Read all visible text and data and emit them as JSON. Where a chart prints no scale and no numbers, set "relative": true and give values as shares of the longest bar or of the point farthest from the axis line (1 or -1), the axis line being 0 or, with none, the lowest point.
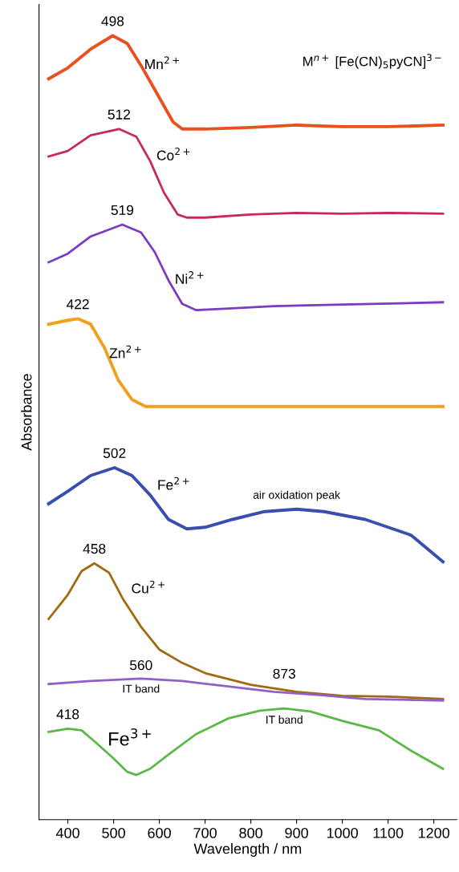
{
  "chart_data": {
    "type": "line",
    "relative": true,
    "xlabel": "Wavelength / nm",
    "ylabel": "Absorbance",
    "xlim": [
      337,
      1250
    ],
    "xticks": [
      400,
      500,
      600,
      700,
      800,
      900,
      1000,
      1100,
      1200
    ],
    "grid": false,
    "legend": false,
    "marker": "none",
    "line_style": "solid",
    "series": [
      {
        "color": "#e8501e",
        "x": [
          358,
          400,
          450,
          498,
          530,
          560,
          600,
          630,
          650,
          700,
          800,
          900,
          1000,
          1100,
          1220
        ],
        "values": [
          0.945,
          0.959,
          0.983,
          1.0,
          0.99,
          0.962,
          0.921,
          0.89,
          0.881,
          0.881,
          0.883,
          0.886,
          0.884,
          0.884,
          0.886
        ]
      },
      {
        "color": "#c8285a",
        "x": [
          358,
          400,
          450,
          512,
          550,
          580,
          610,
          640,
          660,
          700,
          800,
          900,
          1000,
          1100,
          1220
        ],
        "values": [
          0.846,
          0.853,
          0.873,
          0.881,
          0.871,
          0.84,
          0.8,
          0.772,
          0.768,
          0.768,
          0.772,
          0.774,
          0.773,
          0.774,
          0.773
        ]
      },
      {
        "color": "#7a3cc0",
        "x": [
          358,
          400,
          450,
          519,
          560,
          590,
          620,
          650,
          680,
          750,
          850,
          1000,
          1220
        ],
        "values": [
          0.711,
          0.722,
          0.744,
          0.759,
          0.749,
          0.724,
          0.688,
          0.658,
          0.65,
          0.652,
          0.655,
          0.657,
          0.66
        ]
      },
      {
        "color": "#f0a020",
        "x": [
          358,
          400,
          422,
          450,
          480,
          510,
          540,
          570,
          600,
          800,
          1000,
          1220
        ],
        "values": [
          0.632,
          0.637,
          0.639,
          0.632,
          0.602,
          0.561,
          0.536,
          0.527,
          0.527,
          0.527,
          0.527,
          0.527
        ]
      },
      {
        "color": "#3a4eb0",
        "x": [
          358,
          400,
          450,
          502,
          540,
          580,
          620,
          660,
          700,
          760,
          830,
          900,
          960,
          1050,
          1150,
          1220
        ],
        "values": [
          0.403,
          0.419,
          0.439,
          0.449,
          0.439,
          0.414,
          0.383,
          0.371,
          0.373,
          0.383,
          0.393,
          0.396,
          0.393,
          0.383,
          0.363,
          0.329
        ]
      },
      {
        "color": "#a06a10",
        "x": [
          358,
          400,
          430,
          458,
          490,
          520,
          560,
          600,
          650,
          700,
          800,
          900,
          1000,
          1100,
          1220
        ],
        "values": [
          0.256,
          0.287,
          0.317,
          0.327,
          0.315,
          0.282,
          0.246,
          0.217,
          0.2,
          0.187,
          0.172,
          0.163,
          0.158,
          0.157,
          0.154
        ]
      },
      {
        "color": "#9060c8",
        "x": [
          358,
          450,
          560,
          650,
          750,
          850,
          950,
          1050,
          1220
        ],
        "values": [
          0.173,
          0.177,
          0.18,
          0.177,
          0.17,
          0.163,
          0.159,
          0.154,
          0.152
        ]
      },
      {
        "color": "#5ab848",
        "x": [
          358,
          400,
          430,
          460,
          500,
          530,
          550,
          580,
          620,
          680,
          750,
          820,
          873,
          930,
          1000,
          1080,
          1150,
          1220
        ],
        "values": [
          0.112,
          0.116,
          0.114,
          0.099,
          0.078,
          0.061,
          0.057,
          0.065,
          0.083,
          0.109,
          0.129,
          0.139,
          0.142,
          0.138,
          0.126,
          0.114,
          0.088,
          0.065
        ]
      }
    ],
    "annotations": [
      "M$^{n+}$ [Fe(CN)$_{5}$pyCN]$^{3−}$",
      {
        "text": "498",
        "x": 498,
        "y": 1.0
      },
      {
        "text": "Mn$^{2+}$",
        "x": 560,
        "y": 0.962
      },
      {
        "text": "512",
        "x": 512,
        "y": 0.881
      },
      {
        "text": "Co$^{2+}$",
        "x": 580,
        "y": 0.84
      },
      {
        "text": "519",
        "x": 519,
        "y": 0.759
      },
      {
        "text": "Ni$^{2+}$",
        "x": 620,
        "y": 0.688
      },
      {
        "text": "422",
        "x": 422,
        "y": 0.639
      },
      {
        "text": "Zn$^{2+}$",
        "x": 480,
        "y": 0.602
      },
      {
        "text": "502",
        "x": 502,
        "y": 0.449
      },
      {
        "text": "Fe$^{2+}$",
        "x": 580,
        "y": 0.414
      },
      {
        "text": "air oxidation peak",
        "x": 900,
        "y": 0.396
      },
      {
        "text": "458",
        "x": 458,
        "y": 0.327
      },
      {
        "text": "Cu$^{2+}$",
        "x": 520,
        "y": 0.282
      },
      {
        "text": "560",
        "x": 560,
        "y": 0.18
      },
      {
        "text": "IT band",
        "x": 560,
        "y": 0.18
      },
      {
        "text": "418",
        "x": 400,
        "y": 0.116
      },
      {
        "text": "Fe$^{3+}$",
        "x": 500,
        "y": 0.078
      },
      {
        "text": "873",
        "x": 873,
        "y": 0.142
      },
      {
        "text": "IT band",
        "x": 873,
        "y": 0.142
      }
    ]
  }
}
